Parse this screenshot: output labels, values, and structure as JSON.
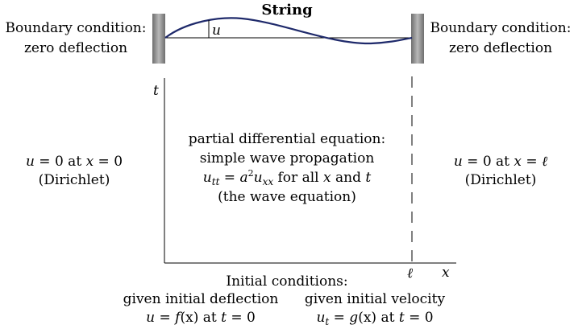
{
  "title": "String",
  "left_support": {
    "line1": "Boundary condition:",
    "line2": "zero deflection"
  },
  "right_support": {
    "line1": "Boundary condition:",
    "line2": "zero deflection"
  },
  "deflection_label": "u",
  "axes": {
    "t_label": "t",
    "x_label": "x",
    "ell_label": "ℓ"
  },
  "left_bc": {
    "line1": {
      "a": "u",
      "b": " = 0 at ",
      "c": "x",
      "d": " = 0"
    },
    "line2": "(Dirichlet)"
  },
  "right_bc": {
    "line1": {
      "a": "u",
      "b": " = 0 at ",
      "c": "x",
      "d": " = ",
      "e": "ℓ"
    },
    "line2": "(Dirichlet)"
  },
  "pde": {
    "line1": "partial differential equation:",
    "line2": "simple wave propagation",
    "line3": {
      "u": "u",
      "tt": "tt",
      "eq": " = ",
      "a": "a",
      "sq": "2",
      "u2": "u",
      "xx": "xx",
      "rest": " for all ",
      "x": "x",
      "and": " and ",
      "t": "t"
    },
    "line4": "(the wave equation)"
  },
  "initial": {
    "heading": "Initial conditions:",
    "deflection": {
      "label": "given initial deflection",
      "eq": {
        "u": "u",
        "eq": " = ",
        "f": "f",
        "x": "(x)",
        "at": " at ",
        "t": "t",
        "zero": " = 0"
      }
    },
    "velocity": {
      "label": "given initial velocity",
      "eq": {
        "u": "u",
        "sub": "t",
        "eq": " = ",
        "g": "g",
        "x": "(x)",
        "at": " at ",
        "t": "t",
        "zero": " = 0"
      }
    }
  },
  "colors": {
    "string": "#1f2a6b",
    "support_dark": "#6e6e6e",
    "support_light": "#b8b8b8",
    "ink": "#000000"
  }
}
